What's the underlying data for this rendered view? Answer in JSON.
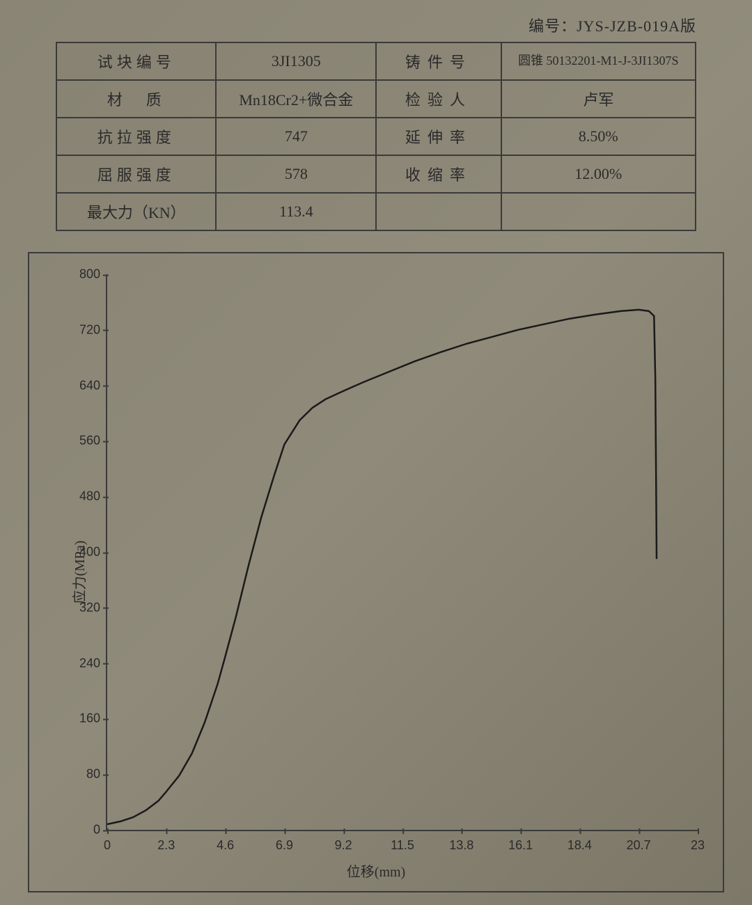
{
  "header": {
    "doc_number_label": "编号：",
    "doc_number": "JYS-JZB-019A版"
  },
  "table": {
    "rows": [
      {
        "label1": "试块编号",
        "value1": "3JI1305",
        "label2": "铸件号",
        "value2": "圆锥 50132201-M1-J-3JI1307S"
      },
      {
        "label1": "材　质",
        "value1": "Mn18Cr2+微合金",
        "label2": "检验人",
        "value2": "卢军"
      },
      {
        "label1": "抗拉强度",
        "value1": "747",
        "label2": "延伸率",
        "value2": "8.50%"
      },
      {
        "label1": "屈服强度",
        "value1": "578",
        "label2": "收缩率",
        "value2": "12.00%"
      },
      {
        "label1": "最大力（KN）",
        "value1": "113.4",
        "label2": "",
        "value2": ""
      }
    ]
  },
  "chart": {
    "type": "line",
    "ylabel": "应力(MPa)",
    "xlabel": "位移(mm)",
    "xlim": [
      0,
      23
    ],
    "ylim": [
      0,
      800
    ],
    "xtick_step": 2.3,
    "ytick_step": 80,
    "xticks": [
      0,
      2.3,
      4.6,
      6.9,
      9.2,
      11.5,
      13.8,
      16.1,
      18.4,
      20.7,
      23
    ],
    "xtick_labels": [
      "0",
      "2.3",
      "4.6",
      "6.9",
      "9.2",
      "11.5",
      "13.8",
      "16.1",
      "18.4",
      "20.7",
      "23"
    ],
    "yticks": [
      0,
      80,
      160,
      240,
      320,
      400,
      480,
      560,
      640,
      720,
      800
    ],
    "ytick_labels": [
      "0",
      "80",
      "160",
      "240",
      "320",
      "400",
      "480",
      "560",
      "640",
      "720",
      "800"
    ],
    "line_color": "#1a1a1a",
    "line_width": 2.5,
    "background_color": "transparent",
    "axis_color": "#3a3a3a",
    "label_fontsize": 20,
    "tick_fontsize": 18,
    "series": {
      "x": [
        0,
        0.5,
        1.0,
        1.5,
        2.0,
        2.3,
        2.8,
        3.3,
        3.8,
        4.3,
        4.6,
        5.0,
        5.5,
        6.0,
        6.5,
        6.9,
        7.5,
        8.0,
        8.5,
        9.2,
        10.0,
        11.0,
        12.0,
        13.0,
        14.0,
        15.0,
        16.0,
        17.0,
        18.0,
        19.0,
        20.0,
        20.7,
        21.1,
        21.3,
        21.35,
        21.38,
        21.4
      ],
      "y": [
        8,
        12,
        18,
        28,
        42,
        55,
        78,
        110,
        155,
        210,
        250,
        305,
        380,
        450,
        510,
        555,
        590,
        608,
        620,
        632,
        645,
        660,
        675,
        688,
        700,
        710,
        720,
        728,
        736,
        742,
        747,
        749,
        747,
        740,
        650,
        500,
        390
      ]
    }
  }
}
